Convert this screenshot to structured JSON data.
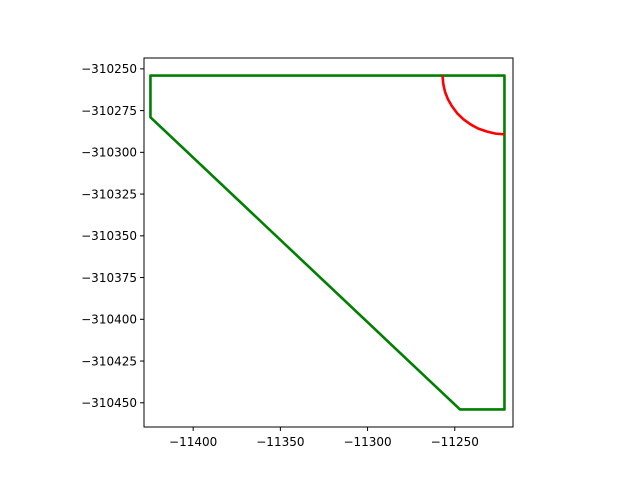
{
  "chart_data": {
    "type": "line",
    "title": "",
    "xlabel": "",
    "ylabel": "",
    "xlim": [
      -11428.2,
      -11216.6
    ],
    "ylim": [
      -310464.5,
      -310243.5
    ],
    "y_inverted": true,
    "grid": false,
    "legend": "none",
    "x_ticks": [
      {
        "value": -11400,
        "label": "−11400"
      },
      {
        "value": -11350,
        "label": "−11350"
      },
      {
        "value": -11300,
        "label": "−11300"
      },
      {
        "value": -11250,
        "label": "−11250"
      }
    ],
    "y_ticks": [
      {
        "value": -310250,
        "label": "−310250"
      },
      {
        "value": -310275,
        "label": "−310275"
      },
      {
        "value": -310300,
        "label": "−310300"
      },
      {
        "value": -310325,
        "label": "−310325"
      },
      {
        "value": -310350,
        "label": "−310350"
      },
      {
        "value": -310375,
        "label": "−310375"
      },
      {
        "value": -310400,
        "label": "−310400"
      },
      {
        "value": -310425,
        "label": "−310425"
      },
      {
        "value": -310450,
        "label": "−310450"
      }
    ],
    "series": [
      {
        "color": "#008000",
        "closed": true,
        "x": [
          -11424.5,
          -11221.5,
          -11221.5,
          -11247.0,
          -11424.5,
          -11424.5
        ],
        "y": [
          -310254.0,
          -310254.0,
          -310454.0,
          -310454.0,
          -310279.0,
          -310254.0
        ]
      },
      {
        "color": "#ff0000",
        "closed": false,
        "x": [
          -11257.0,
          -11256.6,
          -11255.6,
          -11253.9,
          -11251.6,
          -11248.6,
          -11245.0,
          -11240.9,
          -11236.5,
          -11231.4,
          -11226.6,
          -11221.5
        ],
        "y": [
          -310254.0,
          -310258.9,
          -310263.7,
          -310268.2,
          -310272.4,
          -310276.6,
          -310280.2,
          -310283.3,
          -310285.8,
          -310287.6,
          -310288.8,
          -310289.2
        ]
      }
    ]
  }
}
